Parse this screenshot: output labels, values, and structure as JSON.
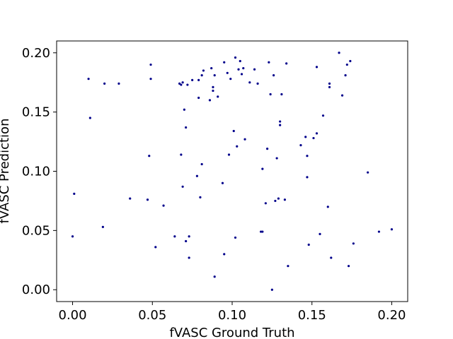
{
  "chart_data": {
    "type": "scatter",
    "xlabel": "fVASC Ground Truth",
    "ylabel": "fVASC Prediction",
    "xlim": [
      -0.01,
      0.21
    ],
    "ylim": [
      -0.01,
      0.21
    ],
    "xticks": [
      0.0,
      0.05,
      0.1,
      0.15,
      0.2
    ],
    "yticks": [
      0.0,
      0.05,
      0.1,
      0.15,
      0.2
    ],
    "xtick_labels": [
      "0.00",
      "0.05",
      "0.10",
      "0.15",
      "0.20"
    ],
    "ytick_labels": [
      "0.00",
      "0.05",
      "0.10",
      "0.15",
      "0.20"
    ],
    "grid": false,
    "marker_color": "#00008b",
    "points": [
      {
        "x": 0.0,
        "y": 0.045
      },
      {
        "x": 0.001,
        "y": 0.081
      },
      {
        "x": 0.01,
        "y": 0.178
      },
      {
        "x": 0.011,
        "y": 0.145
      },
      {
        "x": 0.019,
        "y": 0.053
      },
      {
        "x": 0.02,
        "y": 0.174
      },
      {
        "x": 0.029,
        "y": 0.174
      },
      {
        "x": 0.036,
        "y": 0.077
      },
      {
        "x": 0.047,
        "y": 0.076
      },
      {
        "x": 0.048,
        "y": 0.113
      },
      {
        "x": 0.049,
        "y": 0.178
      },
      {
        "x": 0.049,
        "y": 0.19
      },
      {
        "x": 0.052,
        "y": 0.036
      },
      {
        "x": 0.057,
        "y": 0.071
      },
      {
        "x": 0.064,
        "y": 0.045
      },
      {
        "x": 0.067,
        "y": 0.174
      },
      {
        "x": 0.068,
        "y": 0.173
      },
      {
        "x": 0.068,
        "y": 0.114
      },
      {
        "x": 0.069,
        "y": 0.087
      },
      {
        "x": 0.069,
        "y": 0.175
      },
      {
        "x": 0.07,
        "y": 0.152
      },
      {
        "x": 0.071,
        "y": 0.137
      },
      {
        "x": 0.071,
        "y": 0.041
      },
      {
        "x": 0.072,
        "y": 0.173
      },
      {
        "x": 0.073,
        "y": 0.027
      },
      {
        "x": 0.073,
        "y": 0.045
      },
      {
        "x": 0.075,
        "y": 0.177
      },
      {
        "x": 0.078,
        "y": 0.096
      },
      {
        "x": 0.079,
        "y": 0.177
      },
      {
        "x": 0.079,
        "y": 0.162
      },
      {
        "x": 0.08,
        "y": 0.078
      },
      {
        "x": 0.081,
        "y": 0.106
      },
      {
        "x": 0.081,
        "y": 0.181
      },
      {
        "x": 0.082,
        "y": 0.185
      },
      {
        "x": 0.086,
        "y": 0.16
      },
      {
        "x": 0.087,
        "y": 0.187
      },
      {
        "x": 0.088,
        "y": 0.168
      },
      {
        "x": 0.088,
        "y": 0.171
      },
      {
        "x": 0.089,
        "y": 0.011
      },
      {
        "x": 0.089,
        "y": 0.181
      },
      {
        "x": 0.091,
        "y": 0.163
      },
      {
        "x": 0.094,
        "y": 0.09
      },
      {
        "x": 0.095,
        "y": 0.192
      },
      {
        "x": 0.095,
        "y": 0.03
      },
      {
        "x": 0.097,
        "y": 0.183
      },
      {
        "x": 0.098,
        "y": 0.114
      },
      {
        "x": 0.099,
        "y": 0.178
      },
      {
        "x": 0.101,
        "y": 0.134
      },
      {
        "x": 0.102,
        "y": 0.196
      },
      {
        "x": 0.102,
        "y": 0.044
      },
      {
        "x": 0.103,
        "y": 0.121
      },
      {
        "x": 0.104,
        "y": 0.186
      },
      {
        "x": 0.105,
        "y": 0.193
      },
      {
        "x": 0.106,
        "y": 0.182
      },
      {
        "x": 0.107,
        "y": 0.187
      },
      {
        "x": 0.108,
        "y": 0.127
      },
      {
        "x": 0.111,
        "y": 0.175
      },
      {
        "x": 0.114,
        "y": 0.186
      },
      {
        "x": 0.116,
        "y": 0.174
      },
      {
        "x": 0.118,
        "y": 0.049
      },
      {
        "x": 0.119,
        "y": 0.049
      },
      {
        "x": 0.119,
        "y": 0.102
      },
      {
        "x": 0.121,
        "y": 0.073
      },
      {
        "x": 0.122,
        "y": 0.119
      },
      {
        "x": 0.123,
        "y": 0.192
      },
      {
        "x": 0.124,
        "y": 0.165
      },
      {
        "x": 0.125,
        "y": 0.0
      },
      {
        "x": 0.126,
        "y": 0.181
      },
      {
        "x": 0.127,
        "y": 0.075
      },
      {
        "x": 0.128,
        "y": 0.111
      },
      {
        "x": 0.129,
        "y": 0.077
      },
      {
        "x": 0.13,
        "y": 0.139
      },
      {
        "x": 0.13,
        "y": 0.142
      },
      {
        "x": 0.131,
        "y": 0.165
      },
      {
        "x": 0.133,
        "y": 0.076
      },
      {
        "x": 0.134,
        "y": 0.191
      },
      {
        "x": 0.135,
        "y": 0.02
      },
      {
        "x": 0.143,
        "y": 0.122
      },
      {
        "x": 0.146,
        "y": 0.129
      },
      {
        "x": 0.147,
        "y": 0.095
      },
      {
        "x": 0.147,
        "y": 0.113
      },
      {
        "x": 0.148,
        "y": 0.038
      },
      {
        "x": 0.151,
        "y": 0.128
      },
      {
        "x": 0.153,
        "y": 0.132
      },
      {
        "x": 0.153,
        "y": 0.188
      },
      {
        "x": 0.155,
        "y": 0.047
      },
      {
        "x": 0.157,
        "y": 0.147
      },
      {
        "x": 0.16,
        "y": 0.07
      },
      {
        "x": 0.161,
        "y": 0.174
      },
      {
        "x": 0.161,
        "y": 0.171
      },
      {
        "x": 0.162,
        "y": 0.027
      },
      {
        "x": 0.167,
        "y": 0.2
      },
      {
        "x": 0.169,
        "y": 0.164
      },
      {
        "x": 0.171,
        "y": 0.181
      },
      {
        "x": 0.172,
        "y": 0.19
      },
      {
        "x": 0.173,
        "y": 0.02
      },
      {
        "x": 0.174,
        "y": 0.193
      },
      {
        "x": 0.176,
        "y": 0.039
      },
      {
        "x": 0.185,
        "y": 0.099
      },
      {
        "x": 0.192,
        "y": 0.049
      },
      {
        "x": 0.2,
        "y": 0.051
      }
    ]
  }
}
